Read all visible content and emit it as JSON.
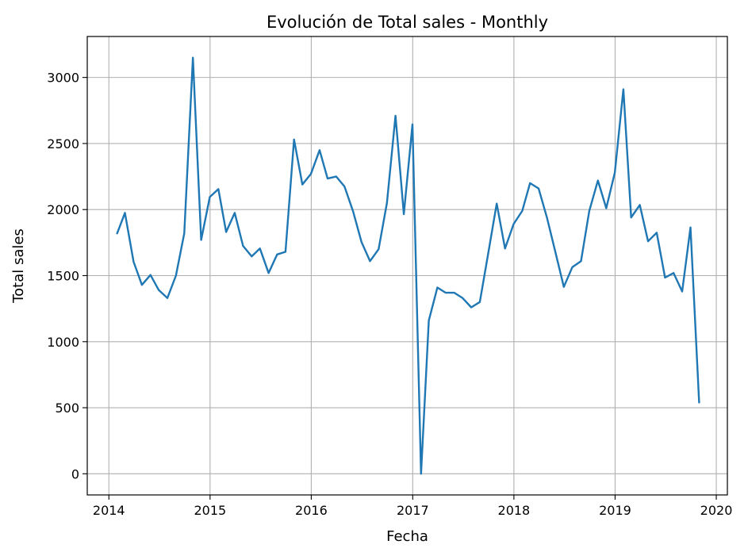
{
  "chart_data": {
    "type": "line",
    "title": "Evolución de Total sales - Monthly",
    "xlabel": "Fecha",
    "ylabel": "Total sales",
    "x_ticks": [
      "2014",
      "2015",
      "2016",
      "2017",
      "2018",
      "2019",
      "2020"
    ],
    "y_ticks": [
      "0",
      "500",
      "1000",
      "1500",
      "2000",
      "2500",
      "3000"
    ],
    "xlim": [
      "2013-10-15",
      "2020-02-10"
    ],
    "ylim": [
      -160,
      3310
    ],
    "grid": true,
    "line_color": "#1f77b4",
    "series": [
      {
        "x": [
          "2014-01-31",
          "2014-02-28",
          "2014-03-31",
          "2014-04-30",
          "2014-05-31",
          "2014-06-30",
          "2014-07-31",
          "2014-08-31",
          "2014-09-30",
          "2014-10-31",
          "2014-11-30",
          "2014-12-31",
          "2015-01-31",
          "2015-02-28",
          "2015-03-31",
          "2015-04-30",
          "2015-05-31",
          "2015-06-30",
          "2015-07-31",
          "2015-08-31",
          "2015-09-30",
          "2015-10-31",
          "2015-11-30",
          "2015-12-31",
          "2016-01-31",
          "2016-02-29",
          "2016-03-31",
          "2016-04-30",
          "2016-05-31",
          "2016-06-30",
          "2016-07-31",
          "2016-08-31",
          "2016-09-30",
          "2016-10-31",
          "2016-11-30",
          "2016-12-31",
          "2017-01-31",
          "2017-02-28",
          "2017-03-31",
          "2017-04-30",
          "2017-05-31",
          "2017-06-30",
          "2017-07-31",
          "2017-08-31",
          "2017-09-30",
          "2017-10-31",
          "2017-11-30",
          "2017-12-31",
          "2018-01-31",
          "2018-02-28",
          "2018-03-31",
          "2018-04-30",
          "2018-05-31",
          "2018-06-30",
          "2018-07-31",
          "2018-08-31",
          "2018-09-30",
          "2018-10-31",
          "2018-11-30",
          "2018-12-31",
          "2019-01-31",
          "2019-02-28",
          "2019-03-31",
          "2019-04-30",
          "2019-05-31",
          "2019-06-30",
          "2019-07-31",
          "2019-08-31",
          "2019-09-30",
          "2019-10-31"
        ],
        "values": [
          1820,
          1975,
          1605,
          1430,
          1505,
          1390,
          1330,
          1500,
          1820,
          3150,
          1770,
          2095,
          2155,
          1830,
          1975,
          1725,
          1645,
          1705,
          1520,
          1660,
          1680,
          2530,
          2190,
          2270,
          2450,
          2235,
          2250,
          2175,
          1985,
          1755,
          1610,
          1700,
          2050,
          2710,
          1965,
          2645,
          0,
          1160,
          1410,
          1370,
          1370,
          1330,
          1260,
          1300,
          1665,
          2045,
          1705,
          1890,
          1990,
          2200,
          2160,
          1940,
          1675,
          1415,
          1565,
          1610,
          1990,
          2220,
          2010,
          2280,
          2910,
          1940,
          2035,
          1760,
          1825,
          1485,
          1520,
          1380,
          1865,
          540
        ]
      }
    ]
  }
}
